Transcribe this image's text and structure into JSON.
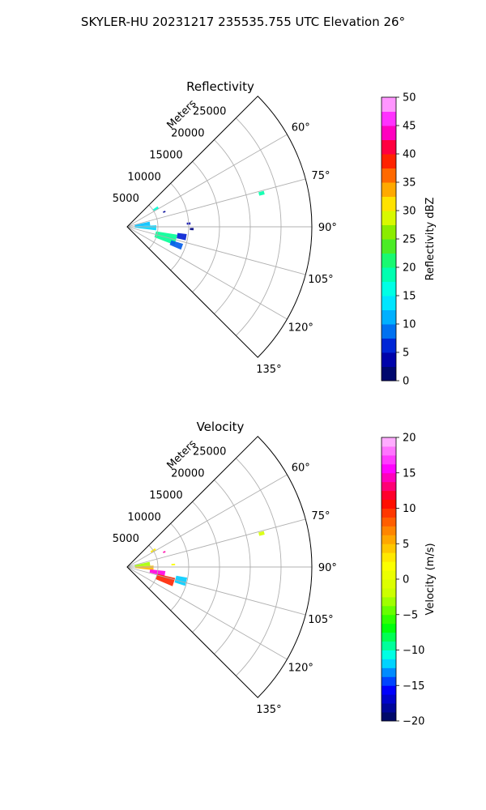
{
  "figure": {
    "title": "SKYLER-HU  20231217  235535.755 UTC Elevation 26°"
  },
  "colors": {
    "grid": "#b0b0b0",
    "frame": "#000000"
  },
  "chart_data": [
    {
      "type": "heatmap",
      "projection": "polar-sector",
      "title": "Reflectivity",
      "radial_label": "Meters",
      "radial_ticks": [
        5000,
        10000,
        15000,
        20000,
        25000
      ],
      "radial_range": [
        0,
        30000
      ],
      "angle_ticks": [
        60,
        75,
        90,
        105,
        120,
        135
      ],
      "angle_range_deg": [
        45,
        135
      ],
      "grid": true,
      "colorbar": {
        "label": "Reflectivity dBZ",
        "min": 0,
        "max": 50,
        "step": 5,
        "ticks": [
          0,
          5,
          10,
          15,
          20,
          25,
          30,
          35,
          40,
          45,
          50
        ],
        "tick_labels": [
          "0",
          "5",
          "10",
          "15",
          "20",
          "25",
          "30",
          "35",
          "40",
          "45",
          "50"
        ],
        "stops": [
          "#000a50",
          "#0000c8",
          "#0096ff",
          "#00ffff",
          "#00ff96",
          "#64e600",
          "#ffff00",
          "#ff8c00",
          "#ff0000",
          "#ff00ff",
          "#ffc8ff"
        ]
      },
      "echoes": [
        {
          "az": 58,
          "r": 5500,
          "dr": 900,
          "da": 4,
          "value": 17
        },
        {
          "az": 68,
          "r": 6500,
          "dr": 400,
          "da": 2,
          "value": 3
        },
        {
          "az": 76,
          "r": 22500,
          "dr": 900,
          "da": 1.5,
          "value": 19
        },
        {
          "az": 87,
          "r": 10000,
          "dr": 600,
          "da": 2,
          "value": 4
        },
        {
          "az": 92,
          "r": 10500,
          "dr": 600,
          "da": 2,
          "value": 2
        },
        {
          "az": 82,
          "r": 2500,
          "dr": 2500,
          "da": 10,
          "value": 12
        },
        {
          "az": 92,
          "r": 3000,
          "dr": 3500,
          "da": 10,
          "value": 13
        },
        {
          "az": 105,
          "r": 6500,
          "dr": 3500,
          "da": 12,
          "value": 20
        },
        {
          "az": 110,
          "r": 8500,
          "dr": 2000,
          "da": 6,
          "value": 8
        },
        {
          "az": 100,
          "r": 9000,
          "dr": 1500,
          "da": 6,
          "value": 6
        }
      ]
    },
    {
      "type": "heatmap",
      "projection": "polar-sector",
      "title": "Velocity",
      "radial_label": "Meters",
      "radial_ticks": [
        5000,
        10000,
        15000,
        20000,
        25000
      ],
      "radial_range": [
        0,
        30000
      ],
      "angle_ticks": [
        60,
        75,
        90,
        105,
        120,
        135
      ],
      "angle_range_deg": [
        45,
        135
      ],
      "grid": true,
      "colorbar": {
        "label": "Velocity (m/s)",
        "min": -20,
        "max": 20,
        "step": 2.5,
        "ticks": [
          -20,
          -15,
          -10,
          -5,
          0,
          5,
          10,
          15,
          20
        ],
        "tick_labels": [
          "−20",
          "−15",
          "−10",
          "−5",
          "0",
          "5",
          "10",
          "15",
          "20"
        ],
        "stops": [
          "#000a50",
          "#0000ff",
          "#00ffff",
          "#00ff00",
          "#c8ff00",
          "#ffff00",
          "#ff8c00",
          "#ff0000",
          "#ff00ff",
          "#ffc8ff"
        ]
      },
      "echoes": [
        {
          "az": 58,
          "r": 5000,
          "dr": 900,
          "da": 4,
          "value": 3
        },
        {
          "az": 68,
          "r": 6500,
          "dr": 400,
          "da": 2,
          "value": 14
        },
        {
          "az": 76,
          "r": 22500,
          "dr": 900,
          "da": 1.5,
          "value": -1
        },
        {
          "az": 87,
          "r": 7500,
          "dr": 600,
          "da": 2,
          "value": 2
        },
        {
          "az": 82,
          "r": 2500,
          "dr": 2500,
          "da": 10,
          "value": -3
        },
        {
          "az": 92,
          "r": 2800,
          "dr": 3000,
          "da": 10,
          "value": 5
        },
        {
          "az": 100,
          "r": 5000,
          "dr": 2500,
          "da": 8,
          "value": 15
        },
        {
          "az": 108,
          "r": 6500,
          "dr": 3000,
          "da": 10,
          "value": 10
        },
        {
          "az": 104,
          "r": 9000,
          "dr": 1800,
          "da": 8,
          "value": -12
        }
      ]
    }
  ]
}
